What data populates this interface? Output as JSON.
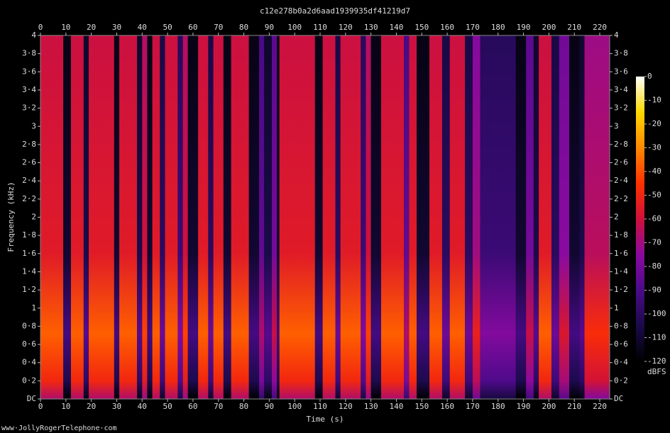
{
  "chart_data": {
    "type": "spectrogram",
    "title": "c12e278b0a2d6aad1939935df41219d7",
    "xlabel": "Time (s)",
    "ylabel": "Frequency (kHz)",
    "footer": "www·JollyRogerTelephone·com",
    "colorbar_label": "dBFS",
    "xlim": [
      0,
      223.9
    ],
    "ylim": [
      0,
      4
    ],
    "xticks": [
      0,
      10,
      20,
      30,
      40,
      50,
      60,
      70,
      80,
      90,
      100,
      110,
      120,
      130,
      140,
      150,
      160,
      170,
      180,
      190,
      200,
      210,
      220
    ],
    "yticks": [
      {
        "value": 0,
        "label": "DC"
      },
      {
        "value": 0.2,
        "label": "0·2"
      },
      {
        "value": 0.4,
        "label": "0·4"
      },
      {
        "value": 0.6,
        "label": "0·6"
      },
      {
        "value": 0.8,
        "label": "0·8"
      },
      1,
      {
        "value": 1.2,
        "label": "1·2"
      },
      {
        "value": 1.4,
        "label": "1·4"
      },
      {
        "value": 1.6,
        "label": "1·6"
      },
      {
        "value": 1.8,
        "label": "1·8"
      },
      2,
      {
        "value": 2.2,
        "label": "2·2"
      },
      {
        "value": 2.4,
        "label": "2·4"
      },
      {
        "value": 2.6,
        "label": "2·6"
      },
      {
        "value": 2.8,
        "label": "2·8"
      },
      3,
      {
        "value": 3.2,
        "label": "3·2"
      },
      {
        "value": 3.4,
        "label": "3·4"
      },
      {
        "value": 3.6,
        "label": "3·6"
      },
      {
        "value": 3.8,
        "label": "3·8"
      },
      4
    ],
    "clim": [
      -120,
      0
    ],
    "cticks": [
      0,
      -10,
      -20,
      -30,
      -40,
      -50,
      -60,
      -70,
      -80,
      -90,
      -100,
      -110,
      -120
    ],
    "colormap": [
      "#000000",
      "#1a0a4a",
      "#4b0a8a",
      "#8a0aa0",
      "#d0103a",
      "#ff3000",
      "#ff8800",
      "#ffd800",
      "#ffffff"
    ],
    "time_edges": [
      0,
      9,
      12,
      17,
      19,
      29,
      31,
      38,
      40,
      42,
      44,
      47,
      49,
      54,
      56,
      58,
      62,
      66,
      68,
      72,
      75,
      82,
      86,
      88,
      91,
      93,
      94,
      108,
      111,
      116,
      118,
      126,
      128,
      130,
      134,
      143,
      145,
      148,
      153,
      158,
      161,
      167,
      170,
      173,
      187,
      191,
      194,
      196,
      201,
      204,
      208,
      212,
      214,
      223.9
    ],
    "values": [
      -55,
      -110,
      -55,
      -105,
      -55,
      -110,
      -55,
      -105,
      -60,
      -110,
      -55,
      -100,
      -55,
      -95,
      -60,
      -110,
      -55,
      -100,
      -55,
      -110,
      -55,
      -110,
      -85,
      -105,
      -80,
      -110,
      -55,
      -110,
      -55,
      -100,
      -55,
      -95,
      -60,
      -110,
      -55,
      -85,
      -55,
      -110,
      -55,
      -100,
      -55,
      -100,
      -70,
      -95,
      -110,
      -80,
      -105,
      -55,
      -100,
      -75,
      -110,
      -105,
      -65
    ]
  }
}
